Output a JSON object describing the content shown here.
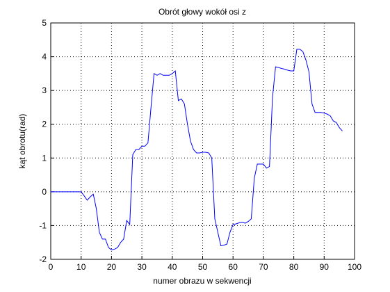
{
  "chart_data": {
    "type": "line",
    "title": "Obrót głowy wokół osi z",
    "xlabel": "numer obrazu w sekwencji",
    "ylabel": "kąt obrotu(rad)",
    "x": [
      0,
      1,
      2,
      3,
      4,
      5,
      6,
      7,
      8,
      9,
      10,
      11,
      12,
      13,
      14,
      15,
      16,
      17,
      18,
      19,
      20,
      21,
      22,
      23,
      24,
      25,
      26,
      27,
      28,
      29,
      30,
      31,
      32,
      33,
      34,
      35,
      36,
      37,
      38,
      39,
      40,
      41,
      42,
      43,
      44,
      45,
      46,
      47,
      48,
      49,
      50,
      51,
      52,
      53,
      54,
      55,
      56,
      57,
      58,
      59,
      60,
      61,
      62,
      63,
      64,
      65,
      66,
      67,
      68,
      69,
      70,
      71,
      72,
      73,
      74,
      75,
      76,
      77,
      78,
      79,
      80,
      81,
      82,
      83,
      84,
      85,
      86,
      87,
      88,
      89,
      90,
      91,
      92,
      93,
      94,
      95,
      96
    ],
    "series": [
      {
        "color": "#0000ff",
        "values": [
          0,
          0,
          0,
          0,
          0,
          0,
          0,
          0,
          0,
          0,
          0,
          -0.12,
          -0.25,
          -0.15,
          -0.07,
          -0.5,
          -1.2,
          -1.4,
          -1.4,
          -1.65,
          -1.72,
          -1.7,
          -1.65,
          -1.5,
          -1.4,
          -0.85,
          -0.97,
          1.1,
          1.25,
          1.25,
          1.35,
          1.35,
          1.45,
          2.5,
          3.5,
          3.45,
          3.5,
          3.45,
          3.45,
          3.45,
          3.5,
          3.58,
          2.7,
          2.75,
          2.6,
          2.0,
          1.5,
          1.25,
          1.15,
          1.15,
          1.17,
          1.17,
          1.15,
          1.0,
          -0.8,
          -1.2,
          -1.6,
          -1.58,
          -1.55,
          -1.2,
          -0.97,
          -0.95,
          -0.92,
          -0.9,
          -0.93,
          -0.88,
          -0.8,
          0.4,
          0.82,
          0.82,
          0.82,
          0.7,
          0.75,
          2.8,
          3.7,
          3.68,
          3.65,
          3.63,
          3.6,
          3.58,
          3.58,
          4.22,
          4.22,
          4.15,
          3.9,
          3.55,
          2.6,
          2.35,
          2.35,
          2.35,
          2.33,
          2.3,
          2.25,
          2.1,
          2.05,
          1.9,
          1.8
        ]
      }
    ],
    "xlim": [
      0,
      100
    ],
    "xticks": [
      0,
      10,
      20,
      30,
      40,
      50,
      60,
      70,
      80,
      90,
      100
    ],
    "ylim": [
      -2,
      5
    ],
    "yticks": [
      -2,
      -1,
      0,
      1,
      2,
      3,
      4,
      5
    ],
    "grid": true
  }
}
